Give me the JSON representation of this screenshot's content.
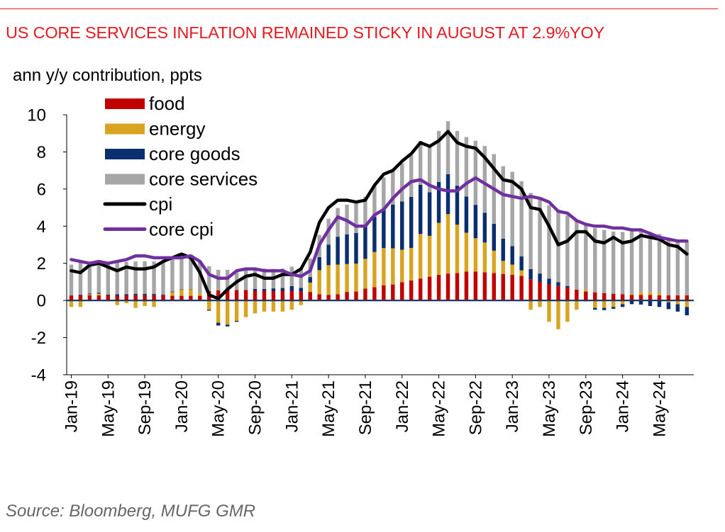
{
  "title": "US CORE SERVICES INFLATION REMAINED STICKY IN AUGUST AT 2.9%YOY",
  "unit_label": "ann y/y  contribution, ppts",
  "source": "Source: Bloomberg, MUFG GMR",
  "colors": {
    "title": "#e31b23",
    "food": "#c00000",
    "energy": "#d9a521",
    "core_goods": "#0b2f6e",
    "core_services": "#a6a6a6",
    "cpi": "#000000",
    "core_cpi": "#7030a0"
  },
  "chart_data": {
    "type": "bar",
    "stacked": true,
    "ylim": [
      -4,
      10
    ],
    "yticks": [
      -4,
      -2,
      0,
      2,
      4,
      6,
      8,
      10
    ],
    "x_tick_labels": [
      "Jan-19",
      "May-19",
      "Sep-19",
      "Jan-20",
      "May-20",
      "Sep-20",
      "Jan-21",
      "May-21",
      "Sep-21",
      "Jan-22",
      "May-22",
      "Sep-22",
      "Jan-23",
      "May-23",
      "Sep-23",
      "Jan-24",
      "May-24",
      "Sep-24"
    ],
    "legend_position": "top-left",
    "grid": false,
    "categories": [
      "Jan-19",
      "Feb-19",
      "Mar-19",
      "Apr-19",
      "May-19",
      "Jun-19",
      "Jul-19",
      "Aug-19",
      "Sep-19",
      "Oct-19",
      "Nov-19",
      "Dec-19",
      "Jan-20",
      "Feb-20",
      "Mar-20",
      "Apr-20",
      "May-20",
      "Jun-20",
      "Jul-20",
      "Aug-20",
      "Sep-20",
      "Oct-20",
      "Nov-20",
      "Dec-20",
      "Jan-21",
      "Feb-21",
      "Mar-21",
      "Apr-21",
      "May-21",
      "Jun-21",
      "Jul-21",
      "Aug-21",
      "Sep-21",
      "Oct-21",
      "Nov-21",
      "Dec-21",
      "Jan-22",
      "Feb-22",
      "Mar-22",
      "Apr-22",
      "May-22",
      "Jun-22",
      "Jul-22",
      "Aug-22",
      "Sep-22",
      "Oct-22",
      "Nov-22",
      "Dec-22",
      "Jan-23",
      "Feb-23",
      "Mar-23",
      "Apr-23",
      "May-23",
      "Jun-23",
      "Jul-23",
      "Aug-23",
      "Sep-23",
      "Oct-23",
      "Nov-23",
      "Dec-23",
      "Jan-24",
      "Feb-24",
      "Mar-24",
      "Apr-24",
      "May-24",
      "Jun-24",
      "Jul-24",
      "Aug-24"
    ],
    "series": [
      {
        "name": "food",
        "kind": "bar",
        "values": [
          0.26,
          0.28,
          0.28,
          0.27,
          0.27,
          0.27,
          0.27,
          0.28,
          0.28,
          0.28,
          0.28,
          0.25,
          0.25,
          0.25,
          0.25,
          0.5,
          0.55,
          0.6,
          0.56,
          0.56,
          0.52,
          0.52,
          0.5,
          0.52,
          0.52,
          0.48,
          0.46,
          0.33,
          0.3,
          0.33,
          0.46,
          0.48,
          0.64,
          0.71,
          0.82,
          0.86,
          0.98,
          1.08,
          1.18,
          1.28,
          1.38,
          1.45,
          1.48,
          1.55,
          1.55,
          1.52,
          1.48,
          1.43,
          1.38,
          1.32,
          1.14,
          1.0,
          0.88,
          0.78,
          0.68,
          0.58,
          0.48,
          0.44,
          0.4,
          0.36,
          0.34,
          0.3,
          0.3,
          0.3,
          0.28,
          0.28,
          0.28,
          0.28
        ]
      },
      {
        "name": "energy",
        "kind": "bar",
        "values": [
          -0.35,
          -0.35,
          0.05,
          0.1,
          -0.05,
          -0.25,
          -0.15,
          -0.4,
          -0.3,
          -0.35,
          -0.05,
          0.2,
          0.35,
          0.35,
          0.15,
          -0.5,
          -1.2,
          -1.3,
          -1.1,
          -0.9,
          -0.7,
          -0.6,
          -0.6,
          -0.6,
          -0.5,
          -0.25,
          0.5,
          1.3,
          1.6,
          1.6,
          1.5,
          1.5,
          1.6,
          1.9,
          2.0,
          1.95,
          1.75,
          1.75,
          2.4,
          2.2,
          2.8,
          3.2,
          2.6,
          2.1,
          1.8,
          1.6,
          1.2,
          0.7,
          0.55,
          0.3,
          -0.5,
          -0.35,
          -1.15,
          -1.55,
          -1.15,
          -0.5,
          0.1,
          -0.4,
          -0.4,
          -0.35,
          -0.2,
          0.05,
          0.15,
          0.15,
          0.1,
          -0.1,
          -0.2,
          -0.35
        ]
      },
      {
        "name": "core goods",
        "kind": "bar",
        "values": [
          0.02,
          0.03,
          0.04,
          0.05,
          0.05,
          0.06,
          0.06,
          0.08,
          0.08,
          0.07,
          0.04,
          0.03,
          0.02,
          0.02,
          0.0,
          -0.05,
          -0.15,
          -0.1,
          -0.05,
          0.0,
          0.1,
          0.1,
          0.15,
          0.15,
          0.25,
          0.2,
          0.3,
          0.7,
          1.1,
          1.5,
          1.6,
          1.65,
          1.8,
          1.9,
          2.05,
          2.35,
          2.6,
          2.75,
          2.65,
          2.35,
          2.2,
          2.15,
          2.1,
          1.95,
          1.8,
          1.6,
          1.45,
          1.2,
          1.0,
          0.75,
          0.55,
          0.45,
          0.3,
          0.2,
          0.1,
          0.0,
          -0.05,
          -0.1,
          -0.12,
          -0.1,
          -0.15,
          -0.2,
          -0.22,
          -0.3,
          -0.35,
          -0.37,
          -0.4,
          -0.45
        ]
      },
      {
        "name": "core services",
        "kind": "bar",
        "values": [
          1.65,
          1.75,
          1.7,
          1.75,
          1.7,
          1.75,
          1.75,
          1.75,
          1.75,
          1.75,
          1.8,
          1.8,
          1.85,
          1.85,
          1.75,
          1.35,
          1.1,
          1.05,
          1.05,
          1.1,
          1.1,
          1.1,
          1.05,
          1.05,
          1.05,
          1.0,
          1.0,
          1.2,
          1.4,
          1.55,
          1.6,
          1.6,
          1.55,
          1.65,
          1.75,
          1.8,
          2.05,
          2.25,
          2.35,
          2.55,
          2.75,
          2.85,
          2.95,
          3.2,
          3.45,
          3.6,
          3.75,
          3.9,
          4.0,
          4.05,
          4.1,
          4.05,
          3.95,
          3.9,
          3.8,
          3.7,
          3.55,
          3.45,
          3.4,
          3.35,
          3.35,
          3.4,
          3.3,
          3.25,
          3.2,
          3.1,
          3.0,
          2.9
        ]
      },
      {
        "name": "cpi",
        "kind": "line",
        "values": [
          1.6,
          1.5,
          1.9,
          2.0,
          1.8,
          1.6,
          1.8,
          1.7,
          1.7,
          1.8,
          2.1,
          2.3,
          2.5,
          2.3,
          1.5,
          0.3,
          0.1,
          0.6,
          1.0,
          1.3,
          1.4,
          1.2,
          1.2,
          1.4,
          1.4,
          1.7,
          2.6,
          4.2,
          5.0,
          5.4,
          5.4,
          5.3,
          5.4,
          6.2,
          6.8,
          7.0,
          7.5,
          7.9,
          8.5,
          8.3,
          8.6,
          9.1,
          8.5,
          8.3,
          8.2,
          7.7,
          7.1,
          6.5,
          6.4,
          6.0,
          5.0,
          4.9,
          4.0,
          3.0,
          3.2,
          3.7,
          3.7,
          3.2,
          3.1,
          3.4,
          3.1,
          3.2,
          3.5,
          3.4,
          3.3,
          3.0,
          2.9,
          2.5
        ]
      },
      {
        "name": "core cpi",
        "kind": "line",
        "values": [
          2.2,
          2.1,
          2.0,
          2.1,
          2.0,
          2.1,
          2.2,
          2.4,
          2.4,
          2.3,
          2.3,
          2.3,
          2.3,
          2.4,
          2.1,
          1.4,
          1.2,
          1.2,
          1.6,
          1.7,
          1.7,
          1.6,
          1.6,
          1.6,
          1.4,
          1.3,
          1.6,
          3.0,
          3.8,
          4.5,
          4.3,
          4.0,
          4.0,
          4.6,
          4.9,
          5.5,
          6.0,
          6.4,
          6.5,
          6.2,
          6.0,
          5.9,
          5.9,
          6.3,
          6.6,
          6.3,
          6.0,
          5.7,
          5.6,
          5.5,
          5.6,
          5.5,
          5.3,
          4.8,
          4.7,
          4.3,
          4.1,
          4.0,
          4.0,
          3.9,
          3.9,
          3.8,
          3.8,
          3.6,
          3.4,
          3.3,
          3.2,
          3.2
        ]
      }
    ]
  }
}
